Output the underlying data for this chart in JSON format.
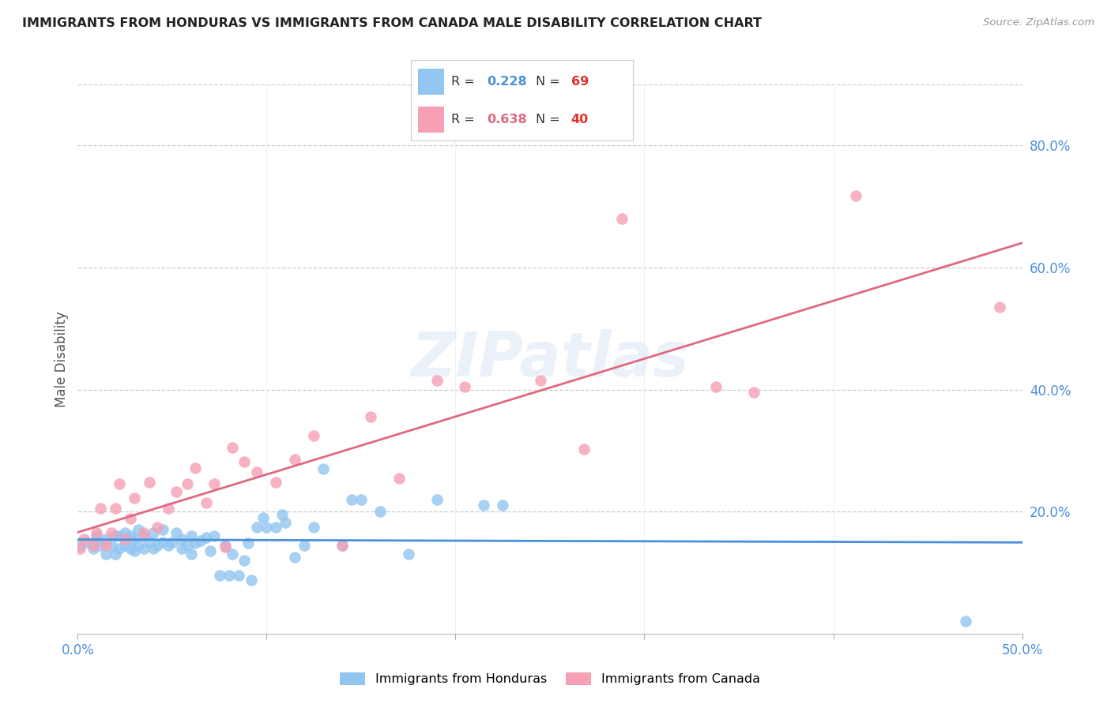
{
  "title": "IMMIGRANTS FROM HONDURAS VS IMMIGRANTS FROM CANADA MALE DISABILITY CORRELATION CHART",
  "source": "Source: ZipAtlas.com",
  "ylabel_label": "Male Disability",
  "xlim": [
    0.0,
    0.5
  ],
  "ylim": [
    0.0,
    0.9
  ],
  "xticks": [
    0.0,
    0.1,
    0.2,
    0.3,
    0.4,
    0.5
  ],
  "xtick_labels": [
    "0.0%",
    "",
    "",
    "",
    "",
    "50.0%"
  ],
  "yticks_right": [
    0.0,
    0.2,
    0.4,
    0.6,
    0.8
  ],
  "ytick_labels_right": [
    "",
    "20.0%",
    "40.0%",
    "60.0%",
    "80.0%"
  ],
  "R_honduras": 0.228,
  "N_honduras": 69,
  "R_canada": 0.638,
  "N_canada": 40,
  "color_honduras": "#92C5F0",
  "color_canada": "#F5A0B5",
  "color_trendline_honduras": "#4A90D9",
  "color_trendline_canada": "#E06880",
  "watermark": "ZIPatlas",
  "honduras_x": [
    0.001,
    0.005,
    0.008,
    0.01,
    0.01,
    0.012,
    0.015,
    0.015,
    0.018,
    0.02,
    0.02,
    0.022,
    0.022,
    0.025,
    0.025,
    0.028,
    0.028,
    0.03,
    0.03,
    0.032,
    0.032,
    0.035,
    0.035,
    0.038,
    0.04,
    0.04,
    0.042,
    0.045,
    0.045,
    0.048,
    0.05,
    0.052,
    0.055,
    0.055,
    0.058,
    0.06,
    0.06,
    0.062,
    0.065,
    0.068,
    0.07,
    0.072,
    0.075,
    0.078,
    0.08,
    0.082,
    0.085,
    0.088,
    0.09,
    0.092,
    0.095,
    0.098,
    0.1,
    0.105,
    0.108,
    0.11,
    0.115,
    0.12,
    0.125,
    0.13,
    0.14,
    0.145,
    0.15,
    0.16,
    0.175,
    0.19,
    0.215,
    0.225,
    0.47
  ],
  "honduras_y": [
    0.145,
    0.15,
    0.14,
    0.155,
    0.16,
    0.145,
    0.13,
    0.155,
    0.145,
    0.13,
    0.16,
    0.14,
    0.16,
    0.145,
    0.165,
    0.14,
    0.16,
    0.135,
    0.155,
    0.145,
    0.17,
    0.14,
    0.16,
    0.15,
    0.14,
    0.165,
    0.145,
    0.15,
    0.17,
    0.145,
    0.15,
    0.165,
    0.14,
    0.155,
    0.145,
    0.13,
    0.16,
    0.148,
    0.152,
    0.158,
    0.135,
    0.16,
    0.095,
    0.145,
    0.095,
    0.13,
    0.095,
    0.12,
    0.148,
    0.088,
    0.175,
    0.19,
    0.175,
    0.175,
    0.195,
    0.182,
    0.125,
    0.145,
    0.175,
    0.27,
    0.145,
    0.22,
    0.22,
    0.2,
    0.13,
    0.22,
    0.21,
    0.21,
    0.02
  ],
  "canada_x": [
    0.001,
    0.003,
    0.008,
    0.01,
    0.012,
    0.015,
    0.018,
    0.02,
    0.022,
    0.025,
    0.028,
    0.03,
    0.035,
    0.038,
    0.042,
    0.048,
    0.052,
    0.058,
    0.062,
    0.068,
    0.072,
    0.078,
    0.082,
    0.088,
    0.095,
    0.105,
    0.115,
    0.125,
    0.14,
    0.155,
    0.17,
    0.19,
    0.205,
    0.245,
    0.268,
    0.288,
    0.338,
    0.358,
    0.412,
    0.488
  ],
  "canada_y": [
    0.14,
    0.155,
    0.145,
    0.165,
    0.205,
    0.145,
    0.165,
    0.205,
    0.245,
    0.155,
    0.188,
    0.222,
    0.165,
    0.248,
    0.175,
    0.205,
    0.232,
    0.245,
    0.272,
    0.215,
    0.245,
    0.142,
    0.305,
    0.282,
    0.265,
    0.248,
    0.285,
    0.325,
    0.145,
    0.355,
    0.255,
    0.415,
    0.405,
    0.415,
    0.302,
    0.68,
    0.405,
    0.395,
    0.718,
    0.535
  ]
}
